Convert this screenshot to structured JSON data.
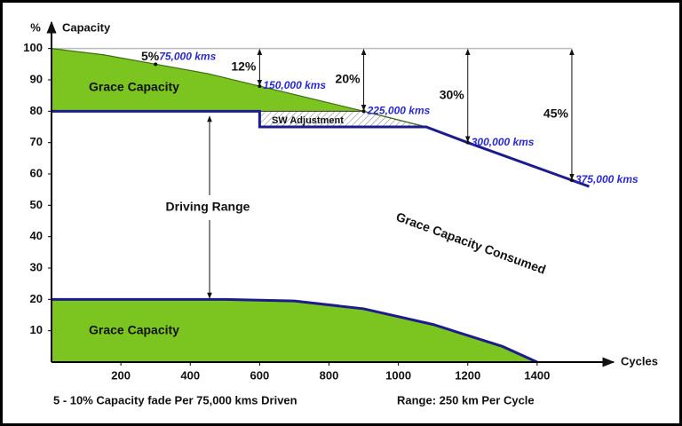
{
  "chart_data": {
    "type": "line",
    "y_label_unit": "%",
    "y_label": "Capacity",
    "x_label": "Cycles",
    "xlim": [
      0,
      1600
    ],
    "ylim": [
      0,
      105
    ],
    "xticks": [
      200,
      400,
      600,
      800,
      1000,
      1200,
      1400
    ],
    "yticks": [
      10,
      20,
      30,
      40,
      50,
      60,
      70,
      80,
      90,
      100
    ],
    "reference_line": 100,
    "series": [
      {
        "x": [
          0,
          150,
          300,
          450,
          600,
          750,
          900,
          1080
        ],
        "values": [
          100,
          98,
          95,
          92,
          88,
          84,
          80,
          75
        ],
        "color": "#3a6b10",
        "fill": "#7cc520"
      },
      {
        "x": [
          0,
          600,
          600,
          1080,
          1200,
          1500,
          1550
        ],
        "values": [
          80,
          80,
          75,
          75,
          70,
          58,
          56
        ],
        "color": "#1c1c8c"
      },
      {
        "x": [
          0,
          500,
          700,
          900,
          1100,
          1300,
          1400
        ],
        "values": [
          20,
          20,
          19.5,
          17,
          12,
          5,
          0
        ],
        "color": "#1c1c8c",
        "fill": "#7cc520"
      }
    ],
    "milestones": [
      {
        "kms": "75,000 kms",
        "pct": "5%",
        "x": 300,
        "y": 95,
        "arrow": false
      },
      {
        "kms": "150,000 kms",
        "pct": "12%",
        "x": 600,
        "y": 88,
        "arrow": true
      },
      {
        "kms": "225,000 kms",
        "pct": "20%",
        "x": 900,
        "y": 80,
        "arrow": true
      },
      {
        "kms": "300,000 kms",
        "pct": "30%",
        "x": 1200,
        "y": 70,
        "arrow": true
      },
      {
        "kms": "375,000 kms",
        "pct": "45%",
        "x": 1500,
        "y": 58,
        "arrow": true
      }
    ],
    "labels": {
      "grace_top": "Grace Capacity",
      "grace_bottom": "Grace Capacity",
      "sw": "SW Adjustment",
      "driving_range": "Driving Range",
      "consumed": "Grace Capacity Consumed",
      "fade_note": "5 - 10% Capacity fade Per 75,000 kms Driven",
      "range_note": "Range: 250 km Per Cycle"
    }
  }
}
